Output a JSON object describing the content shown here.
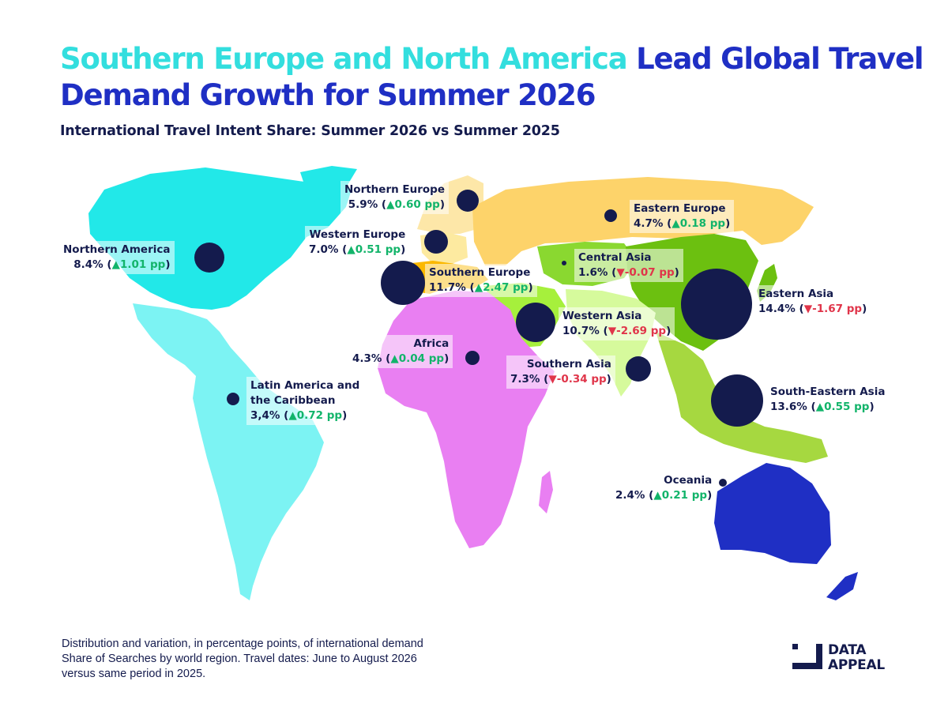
{
  "title": {
    "part1": "Southern Europe and North America",
    "part2": "Lead Global Travel Demand Growth for Summer 2026"
  },
  "subtitle": "International Travel Intent Share: Summer 2026 vs Summer 2025",
  "colors": {
    "title_highlight": "#33dede",
    "title_main": "#1f2fc4",
    "bubble": "#141b4d",
    "increase": "#12b46a",
    "decrease": "#e0354a"
  },
  "regions": {
    "northern_europe": {
      "name": "Northern Europe",
      "share": "5.9%",
      "change": "0.60 pp",
      "direction": "up",
      "arrow": "▲",
      "color": "#fde7a8"
    },
    "eastern_europe": {
      "name": "Eastern Europe",
      "share": "4.7%",
      "change": "0.18 pp",
      "direction": "up",
      "arrow": "▲",
      "color": "#fdd36a"
    },
    "western_europe": {
      "name": "Western Europe",
      "share": "7.0%",
      "change": "0.51 pp",
      "direction": "up",
      "arrow": "▲",
      "color": "#fdeaa0"
    },
    "northern_america": {
      "name": "Northern America",
      "share": "8.4%",
      "change": "1.01 pp",
      "direction": "up",
      "arrow": "▲",
      "color": "#22e8e8"
    },
    "southern_europe": {
      "name": "Southern Europe",
      "share": "11.7%",
      "change": "2.47 pp",
      "direction": "up",
      "arrow": "▲",
      "color": "#fbb800"
    },
    "central_asia": {
      "name": "Central Asia",
      "share": "1.6%",
      "change": "-0.07 pp",
      "direction": "down",
      "arrow": "▼",
      "color": "#8ad830"
    },
    "eastern_asia": {
      "name": "Eastern Asia",
      "share": "14.4%",
      "change": "-1.67 pp",
      "direction": "down",
      "arrow": "▼",
      "color": "#6cc010"
    },
    "western_asia": {
      "name": "Western Asia",
      "share": "10.7%",
      "change": "-2.69 pp",
      "direction": "down",
      "arrow": "▼",
      "color": "#a6f03c"
    },
    "africa": {
      "name": "Africa",
      "share": "4.3%",
      "change": "0.04 pp",
      "direction": "up",
      "arrow": "▲",
      "color": "#e97ff2"
    },
    "southern_asia": {
      "name": "Southern Asia",
      "share": "7.3%",
      "change": "-0.34 pp",
      "direction": "down",
      "arrow": "▼",
      "color": "#d6fa9c"
    },
    "latin_america": {
      "name_line1": "Latin America and",
      "name_line2": "the Caribbean",
      "share": "3,4%",
      "change": "0.72 pp",
      "direction": "up",
      "arrow": "▲",
      "color": "#7cf3f3"
    },
    "south_eastern_asia": {
      "name": "South-Eastern Asia",
      "share": "13.6%",
      "change": "0.55 pp",
      "direction": "up",
      "arrow": "▲",
      "color": "#a6d840"
    },
    "oceania": {
      "name": "Oceania",
      "share": "2.4%",
      "change": "0.21 pp",
      "direction": "up",
      "arrow": "▲",
      "color": "#1f2fc4"
    }
  },
  "footnote": {
    "line1": "Distribution and variation, in percentage points, of international demand",
    "line2": "Share of Searches by world region. Travel dates: June to August 2026",
    "line3": "versus same period in 2025."
  },
  "logo": {
    "line1": "DATA",
    "line2": "APPEAL"
  }
}
